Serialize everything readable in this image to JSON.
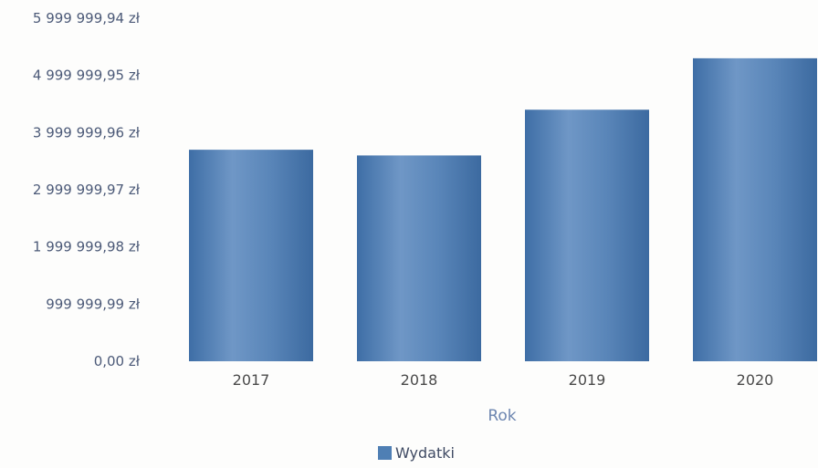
{
  "chart_data": {
    "type": "bar",
    "categories": [
      "2017",
      "2018",
      "2019",
      "2020"
    ],
    "series": [
      {
        "name": "Wydatki",
        "values": [
          3700000,
          3600000,
          4400000,
          5300000
        ]
      }
    ],
    "y_ticks": [
      "0,00 zł",
      "999 999,99 zł",
      "1 999 999,98 zł",
      "2 999 999,97 zł",
      "3 999 999,96 zł",
      "4 999 999,95 zł",
      "5 999 999,94 zł"
    ],
    "y_tick_values": [
      0,
      999999.99,
      1999999.98,
      2999999.97,
      3999999.96,
      4999999.95,
      5999999.94
    ],
    "ylim": [
      0,
      5999999.94
    ],
    "xlabel": "Rok",
    "ylabel": "",
    "title": "",
    "grid": false,
    "legend_position": "bottom-center",
    "colors": {
      "bar": "#5b86b8",
      "bar_dark": "#3f6fa5",
      "legend_swatch": "#4f7fb4"
    }
  }
}
